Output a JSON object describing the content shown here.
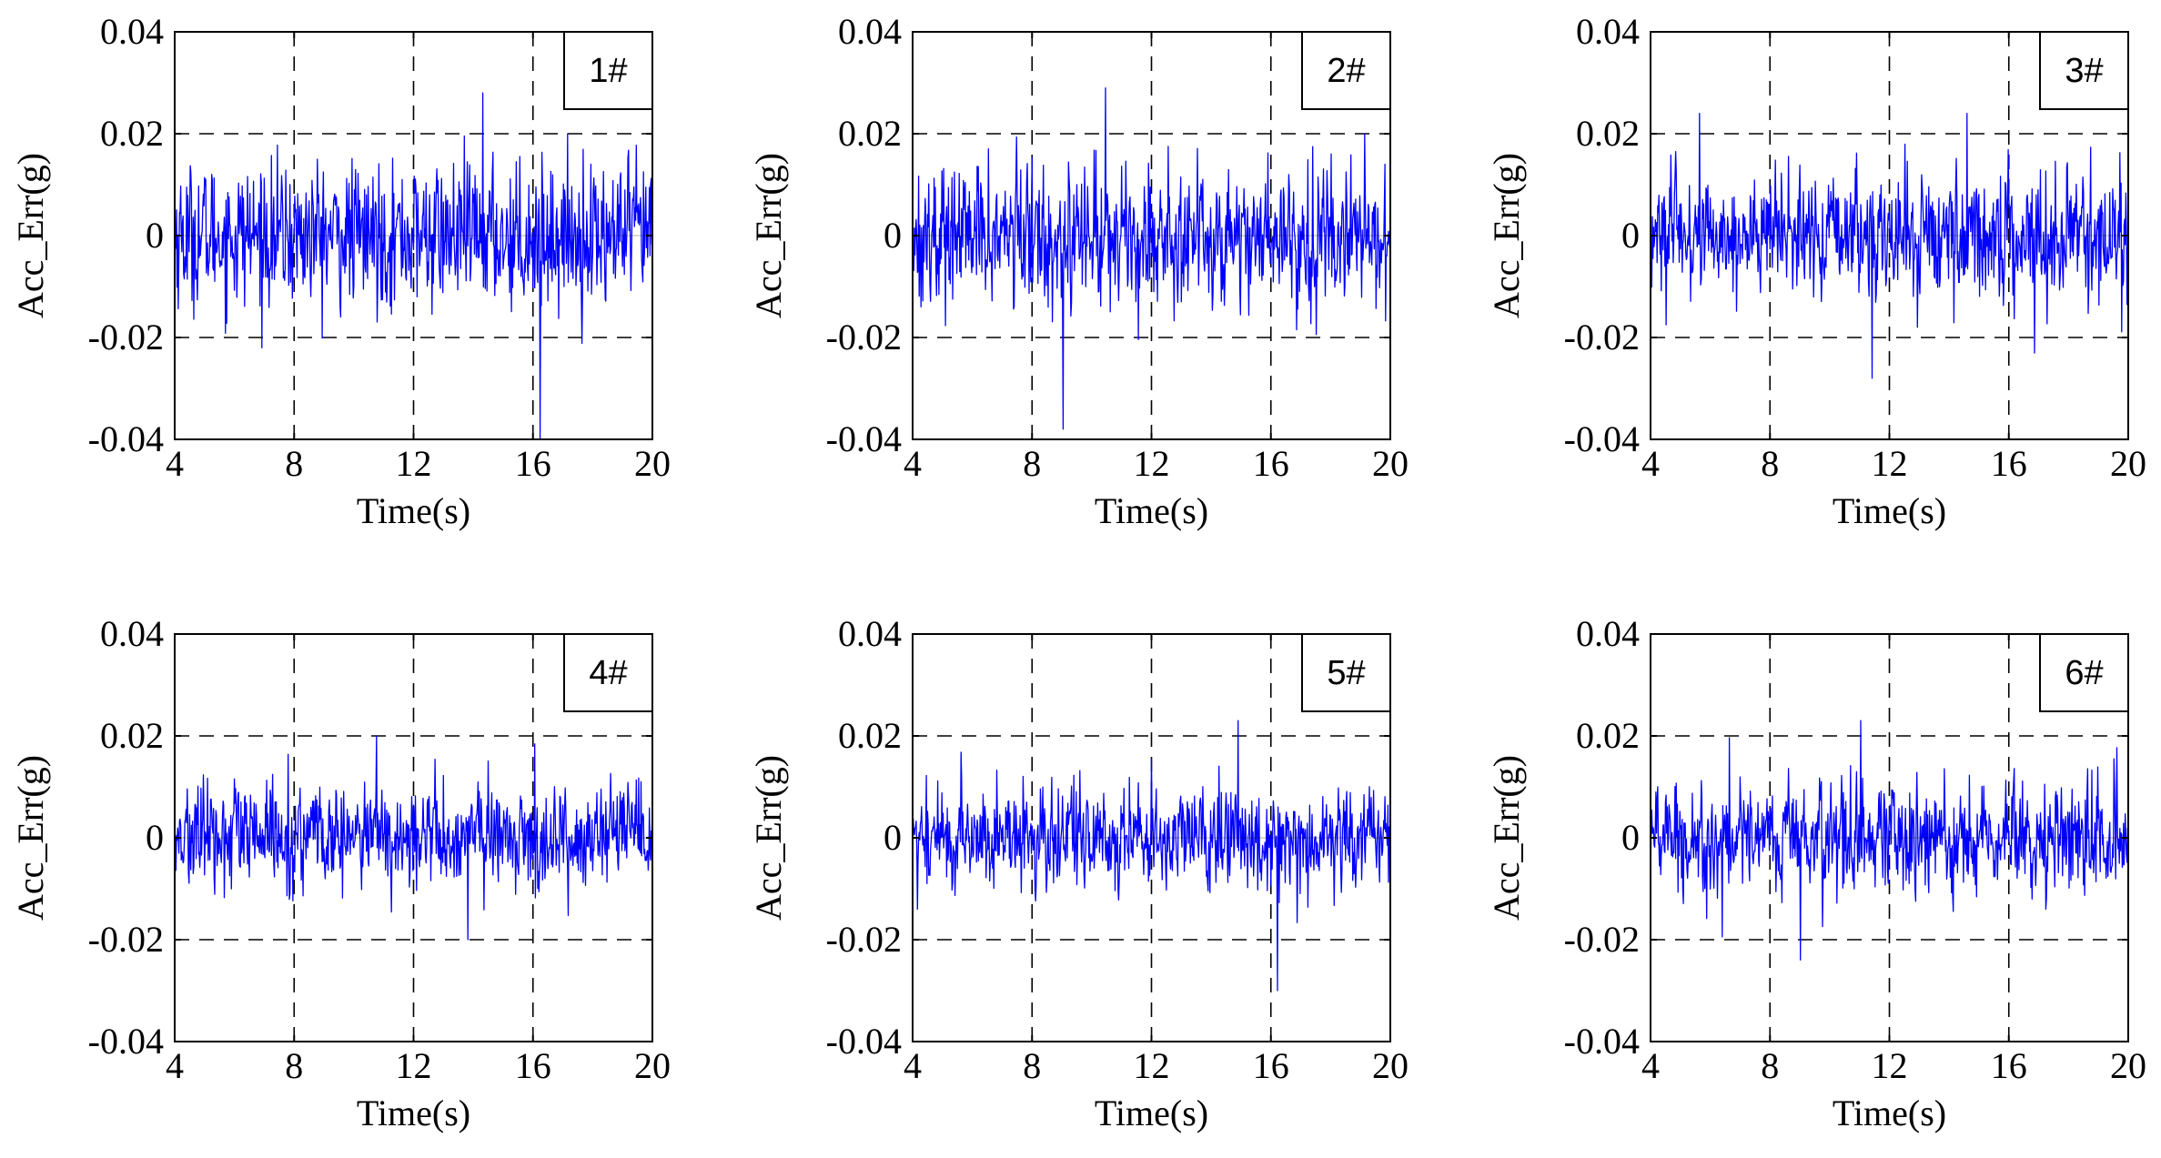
{
  "figure": {
    "panel_count": 6,
    "layout": "2 rows x 3 columns"
  },
  "chart_data": [
    {
      "type": "line",
      "tag": "1#",
      "title": "",
      "xlabel": "Time(s)",
      "ylabel": "Acc_Err(g)",
      "xlim": [
        4,
        20
      ],
      "ylim": [
        -0.04,
        0.04
      ],
      "xticks": [
        4,
        8,
        12,
        16,
        20
      ],
      "xtick_labels": [
        "4",
        "8",
        "12",
        "16",
        "20"
      ],
      "yticks": [
        -0.04,
        -0.02,
        0,
        0.02,
        0.04
      ],
      "ytick_labels": [
        "-0.04",
        "-0.02",
        "0",
        "0.02",
        "0.04"
      ],
      "grid": "dashed",
      "legend": "none",
      "series": [
        {
          "name": "1#",
          "color": "#0000ff",
          "sample_step_s": 0.02,
          "amplitude_rms_g": 0.0075,
          "min_g": -0.04,
          "max_g": 0.028
        }
      ]
    },
    {
      "type": "line",
      "tag": "2#",
      "title": "",
      "xlabel": "Time(s)",
      "ylabel": "Acc_Err(g)",
      "xlim": [
        4,
        20
      ],
      "ylim": [
        -0.04,
        0.04
      ],
      "xticks": [
        4,
        8,
        12,
        16,
        20
      ],
      "xtick_labels": [
        "4",
        "8",
        "12",
        "16",
        "20"
      ],
      "yticks": [
        -0.04,
        -0.02,
        0,
        0.02,
        0.04
      ],
      "ytick_labels": [
        "-0.04",
        "-0.02",
        "0",
        "0.02",
        "0.04"
      ],
      "grid": "dashed",
      "legend": "none",
      "series": [
        {
          "name": "2#",
          "color": "#0000ff",
          "sample_step_s": 0.02,
          "amplitude_rms_g": 0.0075,
          "min_g": -0.038,
          "max_g": 0.029
        }
      ]
    },
    {
      "type": "line",
      "tag": "3#",
      "title": "",
      "xlabel": "Time(s)",
      "ylabel": "Acc_Err(g)",
      "xlim": [
        4,
        20
      ],
      "ylim": [
        -0.04,
        0.04
      ],
      "xticks": [
        4,
        8,
        12,
        16,
        20
      ],
      "xtick_labels": [
        "4",
        "8",
        "12",
        "16",
        "20"
      ],
      "yticks": [
        -0.04,
        -0.02,
        0,
        0.02,
        0.04
      ],
      "ytick_labels": [
        "-0.04",
        "-0.02",
        "0",
        "0.02",
        "0.04"
      ],
      "grid": "dashed",
      "legend": "none",
      "series": [
        {
          "name": "3#",
          "color": "#0000ff",
          "sample_step_s": 0.02,
          "amplitude_rms_g": 0.0065,
          "min_g": -0.028,
          "max_g": 0.024
        }
      ]
    },
    {
      "type": "line",
      "tag": "4#",
      "title": "",
      "xlabel": "Time(s)",
      "ylabel": "Acc_Err(g)",
      "xlim": [
        4,
        20
      ],
      "ylim": [
        -0.04,
        0.04
      ],
      "xticks": [
        4,
        8,
        12,
        16,
        20
      ],
      "xtick_labels": [
        "4",
        "8",
        "12",
        "16",
        "20"
      ],
      "yticks": [
        -0.04,
        -0.02,
        0,
        0.02,
        0.04
      ],
      "ytick_labels": [
        "-0.04",
        "-0.02",
        "0",
        "0.02",
        "0.04"
      ],
      "grid": "dashed",
      "legend": "none",
      "series": [
        {
          "name": "4#",
          "color": "#0000ff",
          "sample_step_s": 0.02,
          "amplitude_rms_g": 0.0055,
          "min_g": -0.02,
          "max_g": 0.02
        }
      ]
    },
    {
      "type": "line",
      "tag": "5#",
      "title": "",
      "xlabel": "Time(s)",
      "ylabel": "Acc_Err(g)",
      "xlim": [
        4,
        20
      ],
      "ylim": [
        -0.04,
        0.04
      ],
      "xticks": [
        4,
        8,
        12,
        16,
        20
      ],
      "xtick_labels": [
        "4",
        "8",
        "12",
        "16",
        "20"
      ],
      "yticks": [
        -0.04,
        -0.02,
        0,
        0.02,
        0.04
      ],
      "ytick_labels": [
        "-0.04",
        "-0.02",
        "0",
        "0.02",
        "0.04"
      ],
      "grid": "dashed",
      "legend": "none",
      "series": [
        {
          "name": "5#",
          "color": "#0000ff",
          "sample_step_s": 0.02,
          "amplitude_rms_g": 0.0055,
          "min_g": -0.03,
          "max_g": 0.023
        }
      ]
    },
    {
      "type": "line",
      "tag": "6#",
      "title": "",
      "xlabel": "Time(s)",
      "ylabel": "Acc_Err(g)",
      "xlim": [
        4,
        20
      ],
      "ylim": [
        -0.04,
        0.04
      ],
      "xticks": [
        4,
        8,
        12,
        16,
        20
      ],
      "xtick_labels": [
        "4",
        "8",
        "12",
        "16",
        "20"
      ],
      "yticks": [
        -0.04,
        -0.02,
        0,
        0.02,
        0.04
      ],
      "ytick_labels": [
        "-0.04",
        "-0.02",
        "0",
        "0.02",
        "0.04"
      ],
      "grid": "dashed",
      "legend": "none",
      "series": [
        {
          "name": "6#",
          "color": "#0000ff",
          "sample_step_s": 0.02,
          "amplitude_rms_g": 0.006,
          "min_g": -0.024,
          "max_g": 0.023
        }
      ]
    }
  ]
}
